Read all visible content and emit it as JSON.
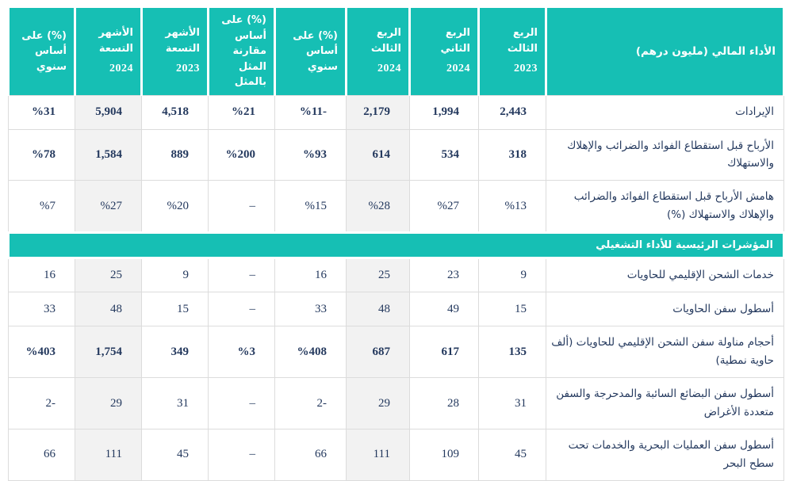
{
  "colors": {
    "teal": "#16bfb4",
    "navy": "#24395e",
    "shaded_column": "#f2f2f2",
    "border": "#dcdcdc"
  },
  "table": {
    "columns": [
      {
        "id": "financial-performance",
        "type": "label",
        "title": "الأداء المالي (مليون درهم)"
      },
      {
        "id": "q3-2023",
        "title": "الربع الثالث",
        "year": "2023"
      },
      {
        "id": "q2-2024",
        "title": "الربع الثاني",
        "year": "2024"
      },
      {
        "id": "q3-2024",
        "title": "الربع الثالث",
        "year": "2024",
        "shaded": true
      },
      {
        "id": "yoy-quarter",
        "title": "(%) على أساس سنوي"
      },
      {
        "id": "like-for-like",
        "title": "(%) على أساس مقارنة المثل بالمثل"
      },
      {
        "id": "nine-months-2023",
        "title": "الأشهر التسعة",
        "year": "2023"
      },
      {
        "id": "nine-months-2024",
        "title": "الأشهر التسعة",
        "year": "2024",
        "shaded": true
      },
      {
        "id": "yoy-nine-months",
        "title": "(%) على أساس سنوي"
      }
    ],
    "rows": [
      {
        "label": "الإيرادات",
        "bold": true,
        "values": [
          "2,443",
          "1,994",
          "2,179",
          "%11-",
          "%21",
          "4,518",
          "5,904",
          "%31"
        ]
      },
      {
        "label": "الأرباح قبل استقطاع الفوائد والضرائب والإهلاك والاستهلاك",
        "bold": true,
        "values": [
          "318",
          "534",
          "614",
          "%93",
          "%200",
          "889",
          "1,584",
          "%78"
        ]
      },
      {
        "label": "هامش الأرباح قبل استقطاع الفوائد والضرائب والإهلاك والاستهلاك (%)",
        "bold": false,
        "values": [
          "%13",
          "%27",
          "%28",
          "%15",
          "–",
          "%20",
          "%27",
          "%7"
        ]
      },
      {
        "type": "section",
        "title": "المؤشرات الرئيسية للأداء التشغيلي"
      },
      {
        "label": "خدمات الشحن الإقليمي للحاويات",
        "bold": false,
        "values": [
          "9",
          "23",
          "25",
          "16",
          "–",
          "9",
          "25",
          "16"
        ]
      },
      {
        "label": "أسطول سفن الحاويات",
        "bold": false,
        "values": [
          "15",
          "49",
          "48",
          "33",
          "–",
          "15",
          "48",
          "33"
        ]
      },
      {
        "label": "أحجام مناولة سفن الشحن الإقليمي للحاويات (ألف حاوية نمطية)",
        "bold": true,
        "values": [
          "135",
          "617",
          "687",
          "%408",
          "%3",
          "349",
          "1,754",
          "%403"
        ]
      },
      {
        "label": "أسطول سفن البضائع السائبة والمدحرجة والسفن متعددة الأغراض",
        "bold": false,
        "values": [
          "31",
          "28",
          "29",
          "2-",
          "–",
          "31",
          "29",
          "2-"
        ]
      },
      {
        "label": "أسطول سفن العمليات البحرية والخدمات تحت سطح البحر",
        "bold": false,
        "values": [
          "45",
          "109",
          "111",
          "66",
          "–",
          "45",
          "111",
          "66"
        ]
      }
    ]
  }
}
